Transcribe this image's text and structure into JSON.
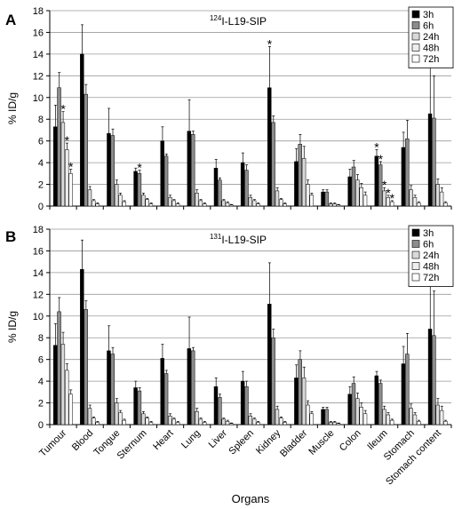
{
  "chart_data": [
    {
      "type": "bar",
      "panel_label": "A",
      "title_superscript": "124",
      "title": "I-L19-SIP",
      "ylabel": "% ID/g",
      "xlabel": "",
      "ylim": [
        0,
        18
      ],
      "yticks": [
        0,
        2,
        4,
        6,
        8,
        10,
        12,
        14,
        16,
        18
      ],
      "grid": true,
      "legend_position": "top-right",
      "categories": [
        "Tumour",
        "Blood",
        "Tongue",
        "Sternum",
        "Heart",
        "Lung",
        "Liver",
        "Spleen",
        "Kidney",
        "Bladder",
        "Muscle",
        "Colon",
        "Ileum",
        "Stomach",
        "Stomach content"
      ],
      "series": [
        {
          "name": "3h",
          "color": "#000000",
          "values": [
            7.3,
            14.0,
            6.7,
            3.2,
            6.0,
            6.9,
            3.5,
            4.0,
            10.9,
            4.1,
            1.3,
            2.7,
            4.6,
            5.4,
            8.5
          ],
          "errors": [
            2.0,
            2.7,
            2.3,
            0.3,
            1.3,
            2.9,
            0.8,
            0.9,
            3.8,
            1.2,
            0.2,
            0.7,
            0.6,
            1.4,
            6.5
          ]
        },
        {
          "name": "6h",
          "color": "#8c8c8c",
          "values": [
            10.9,
            10.3,
            6.5,
            3.0,
            4.6,
            6.6,
            2.4,
            3.3,
            7.7,
            5.7,
            1.3,
            3.6,
            3.8,
            6.2,
            8.1
          ],
          "errors": [
            1.4,
            0.9,
            0.6,
            0.3,
            0.2,
            0.3,
            0.2,
            0.5,
            0.6,
            0.9,
            0.2,
            0.6,
            0.3,
            1.7,
            3.9
          ]
        },
        {
          "name": "24h",
          "color": "#d9d9d9",
          "values": [
            7.7,
            1.5,
            2.0,
            1.0,
            0.8,
            1.2,
            0.5,
            0.8,
            1.4,
            4.4,
            0.2,
            2.4,
            1.4,
            1.5,
            2.0
          ],
          "errors": [
            1.0,
            0.3,
            0.4,
            0.2,
            0.2,
            0.3,
            0.1,
            0.2,
            0.3,
            1.1,
            0.1,
            0.5,
            0.3,
            0.4,
            0.5
          ]
        },
        {
          "name": "48h",
          "color": "#eeeeee",
          "values": [
            5.2,
            0.5,
            1.0,
            0.6,
            0.5,
            0.5,
            0.3,
            0.5,
            0.6,
            2.0,
            0.2,
            1.7,
            0.8,
            0.8,
            1.3
          ],
          "errors": [
            0.6,
            0.1,
            0.2,
            0.1,
            0.1,
            0.1,
            0.1,
            0.1,
            0.1,
            0.4,
            0.1,
            0.4,
            0.2,
            0.2,
            0.4
          ]
        },
        {
          "name": "72h",
          "color": "#ffffff",
          "values": [
            3.0,
            0.2,
            0.4,
            0.2,
            0.2,
            0.2,
            0.1,
            0.2,
            0.2,
            1.0,
            0.1,
            1.0,
            0.4,
            0.3,
            0.3
          ],
          "errors": [
            0.4,
            0.1,
            0.1,
            0.1,
            0.1,
            0.1,
            0.05,
            0.1,
            0.1,
            0.2,
            0.05,
            0.3,
            0.1,
            0.1,
            0.1
          ]
        }
      ],
      "annotations": [
        {
          "text": "*",
          "category": "Tumour",
          "series": "24h"
        },
        {
          "text": "*",
          "category": "Tumour",
          "series": "48h"
        },
        {
          "text": "*",
          "category": "Tumour",
          "series": "72h"
        },
        {
          "text": "*",
          "category": "Sternum",
          "series": "6h"
        },
        {
          "text": "*",
          "category": "Kidney",
          "series": "3h"
        },
        {
          "text": "*",
          "category": "Ileum",
          "series": "3h"
        },
        {
          "text": "*",
          "category": "Ileum",
          "series": "6h"
        },
        {
          "text": "*",
          "category": "Ileum",
          "series": "24h"
        },
        {
          "text": "*",
          "category": "Ileum",
          "series": "48h"
        },
        {
          "text": "*",
          "category": "Ileum",
          "series": "72h"
        }
      ]
    },
    {
      "type": "bar",
      "panel_label": "B",
      "title_superscript": "131",
      "title": "I-L19-SIP",
      "ylabel": "% ID/g",
      "xlabel": "Organs",
      "ylim": [
        0,
        18
      ],
      "yticks": [
        0,
        2,
        4,
        6,
        8,
        10,
        12,
        14,
        16,
        18
      ],
      "grid": true,
      "legend_position": "top-right",
      "categories": [
        "Tumour",
        "Blood",
        "Tongue",
        "Sternum",
        "Heart",
        "Lung",
        "Liver",
        "Spleen",
        "Kidney",
        "Bladder",
        "Muscle",
        "Colon",
        "Ileum",
        "Stomach",
        "Stomach content"
      ],
      "series": [
        {
          "name": "3h",
          "color": "#000000",
          "values": [
            7.3,
            14.3,
            6.8,
            3.4,
            6.1,
            7.0,
            3.5,
            4.0,
            11.1,
            4.3,
            1.4,
            2.8,
            4.5,
            5.6,
            8.8
          ],
          "errors": [
            2.0,
            2.7,
            2.3,
            0.6,
            1.3,
            2.9,
            0.8,
            0.9,
            3.8,
            1.2,
            0.2,
            0.7,
            0.4,
            1.6,
            7.0
          ]
        },
        {
          "name": "6h",
          "color": "#8c8c8c",
          "values": [
            10.4,
            10.6,
            6.5,
            3.1,
            4.7,
            6.8,
            2.5,
            3.5,
            8.0,
            6.0,
            1.4,
            3.8,
            3.8,
            6.5,
            8.2
          ],
          "errors": [
            1.3,
            0.8,
            0.6,
            0.3,
            0.3,
            0.3,
            0.3,
            0.5,
            0.8,
            0.8,
            0.2,
            0.6,
            0.3,
            1.9,
            4.1
          ]
        },
        {
          "name": "24h",
          "color": "#d9d9d9",
          "values": [
            7.4,
            1.5,
            2.0,
            1.0,
            0.8,
            1.2,
            0.5,
            0.8,
            1.4,
            4.3,
            0.2,
            2.4,
            1.4,
            1.5,
            1.8
          ],
          "errors": [
            1.1,
            0.3,
            0.4,
            0.2,
            0.2,
            0.3,
            0.1,
            0.2,
            0.3,
            1.0,
            0.1,
            0.5,
            0.3,
            0.4,
            0.6
          ]
        },
        {
          "name": "48h",
          "color": "#eeeeee",
          "values": [
            5.0,
            0.6,
            1.1,
            0.6,
            0.5,
            0.5,
            0.3,
            0.5,
            0.6,
            1.8,
            0.2,
            1.6,
            0.9,
            0.9,
            1.3
          ],
          "errors": [
            0.6,
            0.1,
            0.2,
            0.1,
            0.1,
            0.1,
            0.1,
            0.1,
            0.1,
            0.4,
            0.1,
            0.4,
            0.2,
            0.2,
            0.4
          ]
        },
        {
          "name": "72h",
          "color": "#ffffff",
          "values": [
            2.8,
            0.2,
            0.4,
            0.2,
            0.2,
            0.2,
            0.1,
            0.2,
            0.2,
            1.0,
            0.1,
            1.0,
            0.4,
            0.3,
            0.3
          ],
          "errors": [
            0.4,
            0.1,
            0.1,
            0.1,
            0.1,
            0.1,
            0.05,
            0.1,
            0.1,
            0.2,
            0.05,
            0.3,
            0.1,
            0.1,
            0.1
          ]
        }
      ],
      "annotations": []
    }
  ]
}
